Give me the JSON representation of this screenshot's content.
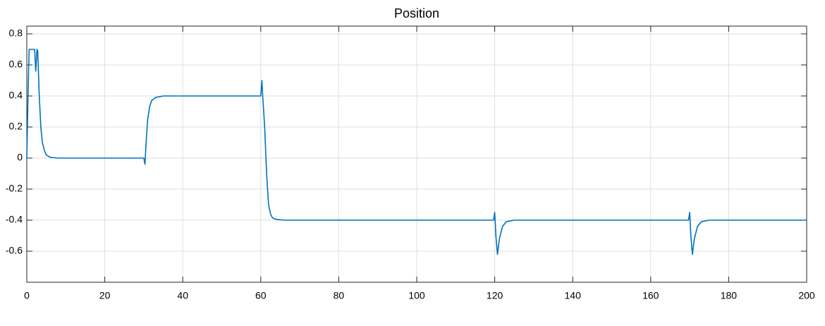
{
  "chart_data": {
    "type": "line",
    "title": "Position",
    "x": [
      0,
      0.4,
      0.6,
      2,
      2.3,
      2.6,
      2.8,
      3.2,
      3.6,
      4,
      4.5,
      5,
      6,
      8,
      30,
      30.3,
      30.6,
      31,
      31.5,
      32,
      33,
      35,
      60,
      60.3,
      60.5,
      61,
      61.5,
      62,
      62.5,
      63,
      64,
      66,
      119.7,
      120,
      120.3,
      120.7,
      121.2,
      122,
      123,
      125,
      169.7,
      170,
      170.3,
      170.7,
      171.2,
      172,
      173,
      175,
      200
    ],
    "series": [
      {
        "color": "#0072bd",
        "values": [
          0,
          0.5,
          0.7,
          0.7,
          0.56,
          0.7,
          0.69,
          0.4,
          0.2,
          0.1,
          0.05,
          0.02,
          0.005,
          0,
          0,
          -0.04,
          0.1,
          0.25,
          0.33,
          0.37,
          0.39,
          0.4,
          0.4,
          0.5,
          0.4,
          0.2,
          -0.1,
          -0.3,
          -0.36,
          -0.385,
          -0.395,
          -0.4,
          -0.4,
          -0.35,
          -0.5,
          -0.62,
          -0.52,
          -0.44,
          -0.41,
          -0.4,
          -0.4,
          -0.35,
          -0.5,
          -0.62,
          -0.52,
          -0.44,
          -0.41,
          -0.4,
          -0.4
        ]
      }
    ],
    "xlim": [
      0,
      200
    ],
    "xticks": [
      0,
      20,
      40,
      60,
      80,
      100,
      120,
      140,
      160,
      180,
      200
    ],
    "ylim": [
      -0.8,
      0.85
    ],
    "yticks": [
      -0.6,
      -0.4,
      -0.2,
      0,
      0.2,
      0.4,
      0.6,
      0.8
    ],
    "grid": true
  }
}
